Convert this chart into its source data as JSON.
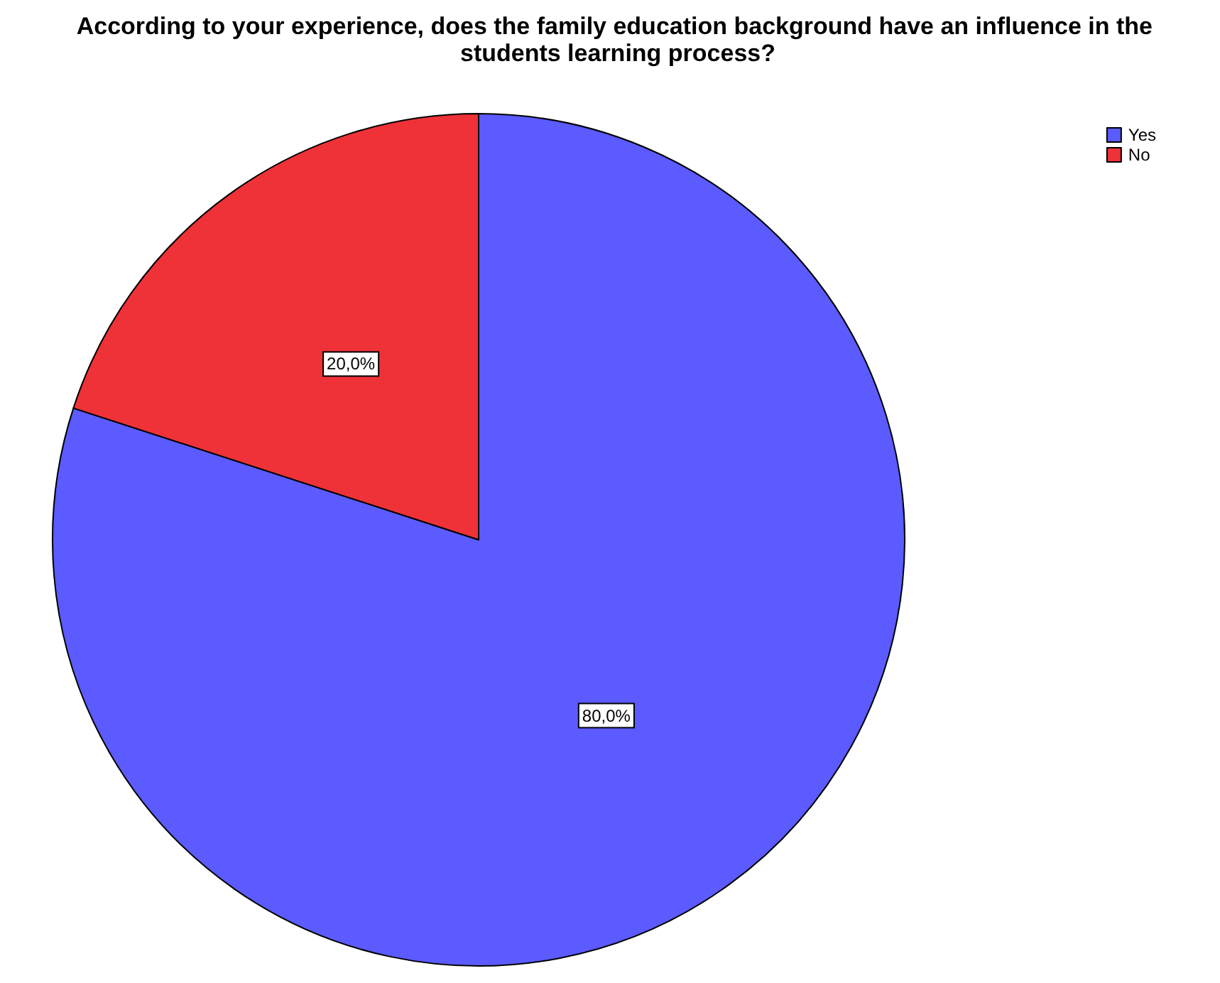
{
  "chart_data": {
    "type": "pie",
    "title": "According to your experience, does the family education background have an influence in the students learning process?",
    "categories": [
      "Yes",
      "No"
    ],
    "values": [
      80,
      20
    ],
    "colors": [
      "#5b5bff",
      "#ee3238"
    ],
    "value_labels": [
      "80,0%",
      "20,0%"
    ],
    "legend": "top right"
  }
}
